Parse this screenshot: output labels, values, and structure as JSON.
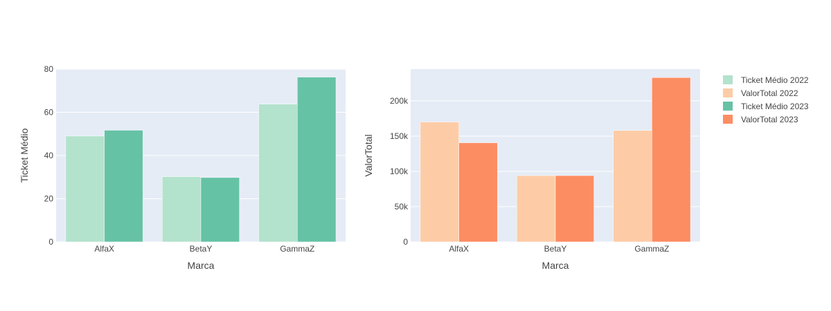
{
  "chart_data": [
    {
      "type": "bar",
      "categories": [
        "AlfaX",
        "BetaY",
        "GammaZ"
      ],
      "series": [
        {
          "name": "Ticket Médio 2022",
          "values": [
            49,
            30.2,
            63.8
          ],
          "color": "#b3e2cd"
        },
        {
          "name": "Ticket Médio 2023",
          "values": [
            51.7,
            29.8,
            76.3
          ],
          "color": "#66c2a5"
        }
      ],
      "title": "",
      "xlabel": "Marca",
      "ylabel": "Ticket Médio",
      "ylim": [
        0,
        80
      ],
      "yticks": [
        0,
        20,
        40,
        60,
        80
      ],
      "ytick_labels": [
        "0",
        "20",
        "40",
        "60",
        "80"
      ],
      "grid": true
    },
    {
      "type": "bar",
      "categories": [
        "AlfaX",
        "BetaY",
        "GammaZ"
      ],
      "series": [
        {
          "name": "ValorTotal 2022",
          "values": [
            170000,
            94000,
            158000
          ],
          "color": "#fdcca7"
        },
        {
          "name": "ValorTotal 2023",
          "values": [
            140500,
            94000,
            233000
          ],
          "color": "#fc8d62"
        }
      ],
      "title": "",
      "xlabel": "Marca",
      "ylabel": "ValorTotal",
      "ylim": [
        0,
        245000
      ],
      "yticks": [
        0,
        50000,
        100000,
        150000,
        200000
      ],
      "ytick_labels": [
        "0",
        "50k",
        "100k",
        "150k",
        "200k"
      ],
      "grid": true
    }
  ],
  "legend": {
    "placement": "top-right",
    "items": [
      {
        "label": "Ticket Médio 2022",
        "color": "#b3e2cd"
      },
      {
        "label": "ValorTotal 2022",
        "color": "#fdcca7"
      },
      {
        "label": "Ticket Médio 2023",
        "color": "#66c2a5"
      },
      {
        "label": "ValorTotal 2023",
        "color": "#fc8d62"
      }
    ]
  },
  "colors": {
    "plot_background": "#e5ecf6",
    "gridline": "#ffffff",
    "text": "#444444"
  }
}
